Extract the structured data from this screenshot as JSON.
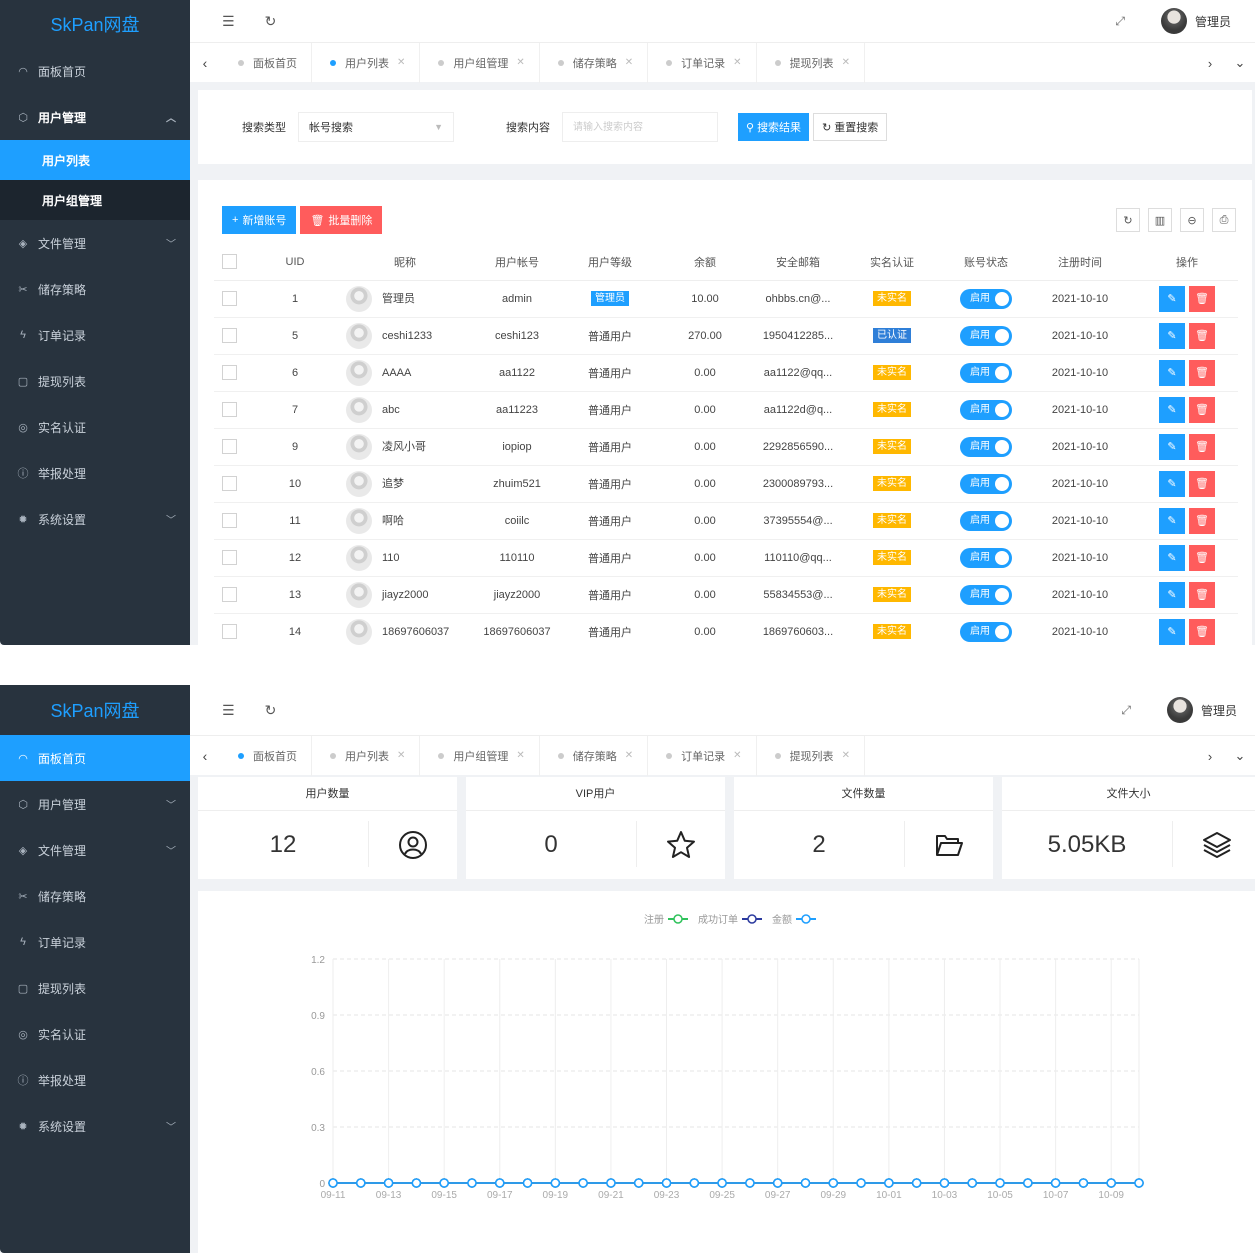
{
  "app": {
    "logo": "SkPan网盘"
  },
  "header": {
    "user_name": "管理员"
  },
  "tabs": [
    {
      "label": "面板首页",
      "closable": false
    },
    {
      "label": "用户列表",
      "closable": true
    },
    {
      "label": "用户组管理",
      "closable": true
    },
    {
      "label": "储存策略",
      "closable": true
    },
    {
      "label": "订单记录",
      "closable": true
    },
    {
      "label": "提现列表",
      "closable": true
    }
  ],
  "sidebar": {
    "dashboard": "面板首页",
    "user_mgmt": "用户管理",
    "user_list": "用户列表",
    "user_group": "用户组管理",
    "file_mgmt": "文件管理",
    "storage": "储存策略",
    "orders": "订单记录",
    "withdraw": "提现列表",
    "realname": "实名认证",
    "report": "举报处理",
    "settings": "系统设置"
  },
  "search": {
    "type_label": "搜索类型",
    "type_value": "帐号搜索",
    "content_label": "搜索内容",
    "content_placeholder": "请输入搜索内容",
    "search_btn": "搜索结果",
    "reset_btn": "重置搜索"
  },
  "toolbar": {
    "add_btn": "新增账号",
    "batch_delete_btn": "批量删除"
  },
  "table": {
    "columns": [
      "UID",
      "昵称",
      "用户帐号",
      "用户等级",
      "余额",
      "安全邮箱",
      "实名认证",
      "账号状态",
      "注册时间",
      "操作"
    ],
    "switch_label": "启用",
    "rows": [
      {
        "uid": "1",
        "nick": "管理员",
        "account": "admin",
        "level": "管理员",
        "level_badge": true,
        "balance": "10.00",
        "email": "ohbbs.cn@...",
        "verify": "未实名",
        "verified": false,
        "date": "2021-10-10"
      },
      {
        "uid": "5",
        "nick": "ceshi1233",
        "account": "ceshi123",
        "level": "普通用户",
        "level_badge": false,
        "balance": "270.00",
        "email": "1950412285...",
        "verify": "已认证",
        "verified": true,
        "date": "2021-10-10"
      },
      {
        "uid": "6",
        "nick": "AAAA",
        "account": "aa1122",
        "level": "普通用户",
        "level_badge": false,
        "balance": "0.00",
        "email": "aa1122@qq...",
        "verify": "未实名",
        "verified": false,
        "date": "2021-10-10"
      },
      {
        "uid": "7",
        "nick": "abc",
        "account": "aa11223",
        "level": "普通用户",
        "level_badge": false,
        "balance": "0.00",
        "email": "aa1122d@q...",
        "verify": "未实名",
        "verified": false,
        "date": "2021-10-10"
      },
      {
        "uid": "9",
        "nick": "凌风小哥",
        "account": "iopiop",
        "level": "普通用户",
        "level_badge": false,
        "balance": "0.00",
        "email": "2292856590...",
        "verify": "未实名",
        "verified": false,
        "date": "2021-10-10"
      },
      {
        "uid": "10",
        "nick": "追梦",
        "account": "zhuim521",
        "level": "普通用户",
        "level_badge": false,
        "balance": "0.00",
        "email": "2300089793...",
        "verify": "未实名",
        "verified": false,
        "date": "2021-10-10"
      },
      {
        "uid": "11",
        "nick": "啊哈",
        "account": "coiilc",
        "level": "普通用户",
        "level_badge": false,
        "balance": "0.00",
        "email": "37395554@...",
        "verify": "未实名",
        "verified": false,
        "date": "2021-10-10"
      },
      {
        "uid": "12",
        "nick": "110",
        "account": "110110",
        "level": "普通用户",
        "level_badge": false,
        "balance": "0.00",
        "email": "110110@qq...",
        "verify": "未实名",
        "verified": false,
        "date": "2021-10-10"
      },
      {
        "uid": "13",
        "nick": "jiayz2000",
        "account": "jiayz2000",
        "level": "普通用户",
        "level_badge": false,
        "balance": "0.00",
        "email": "55834553@...",
        "verify": "未实名",
        "verified": false,
        "date": "2021-10-10"
      },
      {
        "uid": "14",
        "nick": "18697606037",
        "account": "18697606037",
        "level": "普通用户",
        "level_badge": false,
        "balance": "0.00",
        "email": "1869760603...",
        "verify": "未实名",
        "verified": false,
        "date": "2021-10-10"
      }
    ]
  },
  "stats": [
    {
      "title": "用户数量",
      "value": "12",
      "icon": "user-circle-icon"
    },
    {
      "title": "VIP用户",
      "value": "0",
      "icon": "star-icon"
    },
    {
      "title": "文件数量",
      "value": "2",
      "icon": "folder-open-icon"
    },
    {
      "title": "文件大小",
      "value": "5.05KB",
      "icon": "layers-icon"
    }
  ],
  "chart_data": {
    "type": "line",
    "title": "",
    "xlabel": "",
    "ylabel": "",
    "x": [
      "09-11",
      "09-12",
      "09-13",
      "09-14",
      "09-15",
      "09-16",
      "09-17",
      "09-18",
      "09-19",
      "09-20",
      "09-21",
      "09-22",
      "09-23",
      "09-24",
      "09-25",
      "09-26",
      "09-27",
      "09-28",
      "09-29",
      "09-30",
      "10-01",
      "10-02",
      "10-03",
      "10-04",
      "10-05",
      "10-06",
      "10-07",
      "10-08",
      "10-09",
      "10-10"
    ],
    "x_tick_labels": [
      "09-11",
      "09-13",
      "09-15",
      "09-17",
      "09-19",
      "09-21",
      "09-23",
      "09-25",
      "09-27",
      "09-29",
      "10-01",
      "10-03",
      "10-05",
      "10-07",
      "10-09"
    ],
    "y_ticks": [
      "0",
      "0.3",
      "0.6",
      "0.9",
      "1.2"
    ],
    "ylim": [
      0,
      1.2
    ],
    "grid": true,
    "legend_position": "top-center",
    "series": [
      {
        "name": "注册",
        "color": "#2fc25b",
        "values": [
          0,
          0,
          0,
          0,
          0,
          0,
          0,
          0,
          0,
          0,
          0,
          0,
          0,
          0,
          0,
          0,
          0,
          0,
          0,
          0,
          0,
          0,
          0,
          0,
          0,
          0,
          0,
          0,
          0,
          0
        ]
      },
      {
        "name": "成功订单",
        "color": "#2b3a9e",
        "values": [
          0,
          0,
          0,
          0,
          0,
          0,
          0,
          0,
          0,
          0,
          0,
          0,
          0,
          0,
          0,
          0,
          0,
          0,
          0,
          0,
          0,
          0,
          0,
          0,
          0,
          0,
          0,
          0,
          0,
          0
        ]
      },
      {
        "name": "金额",
        "color": "#1e9fff",
        "values": [
          0,
          0,
          0,
          0,
          0,
          0,
          0,
          0,
          0,
          0,
          0,
          0,
          0,
          0,
          0,
          0,
          0,
          0,
          0,
          0,
          0,
          0,
          0,
          0,
          0,
          0,
          0,
          0,
          0,
          0
        ]
      }
    ]
  }
}
